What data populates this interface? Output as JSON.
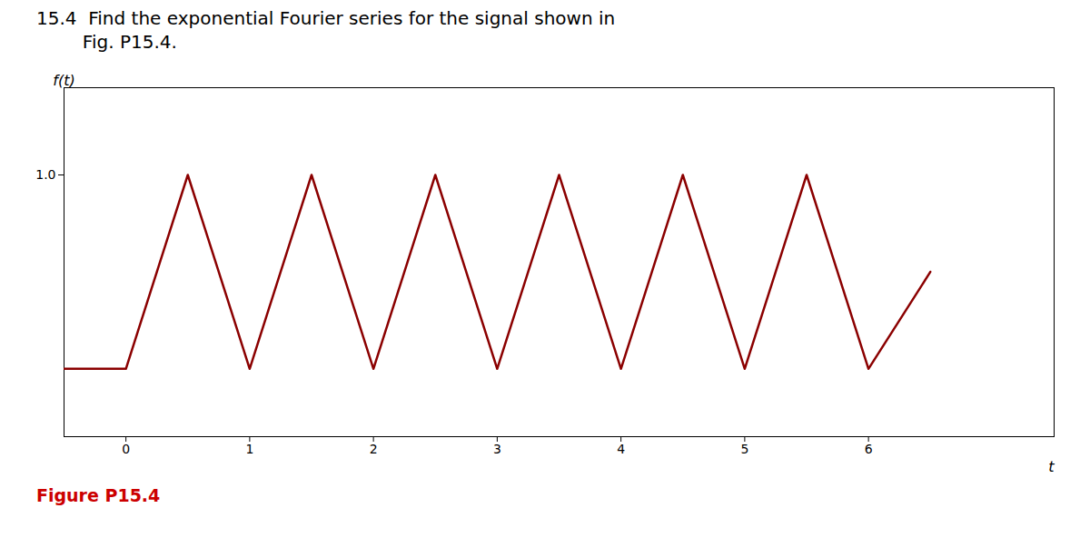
{
  "chart_data": {
    "type": "line",
    "title": "15.4  Find the exponential Fourier series for the signal shown in",
    "subtitle": "        Fig. P15.4.",
    "xlabel": "t",
    "ylabel": "f(t)",
    "x": [
      -0.5,
      0,
      0.5,
      1,
      1.5,
      2,
      2.5,
      3,
      3.5,
      4,
      4.5,
      5,
      5.5,
      6,
      6.5
    ],
    "values": [
      0,
      0,
      1,
      0,
      1,
      0,
      1,
      0,
      1,
      0,
      1,
      0,
      1,
      0,
      0.5
    ],
    "color": "#8B0000",
    "xlim": [
      -0.5,
      7.5
    ],
    "ylim": [
      -0.35,
      1.45
    ],
    "xticks": [
      0,
      1,
      2,
      3,
      4,
      5,
      6
    ],
    "yticks": [
      1
    ],
    "grid": false,
    "annotations": [
      {
        "text": "Figure P15.4",
        "color": "#cc0000"
      }
    ]
  }
}
